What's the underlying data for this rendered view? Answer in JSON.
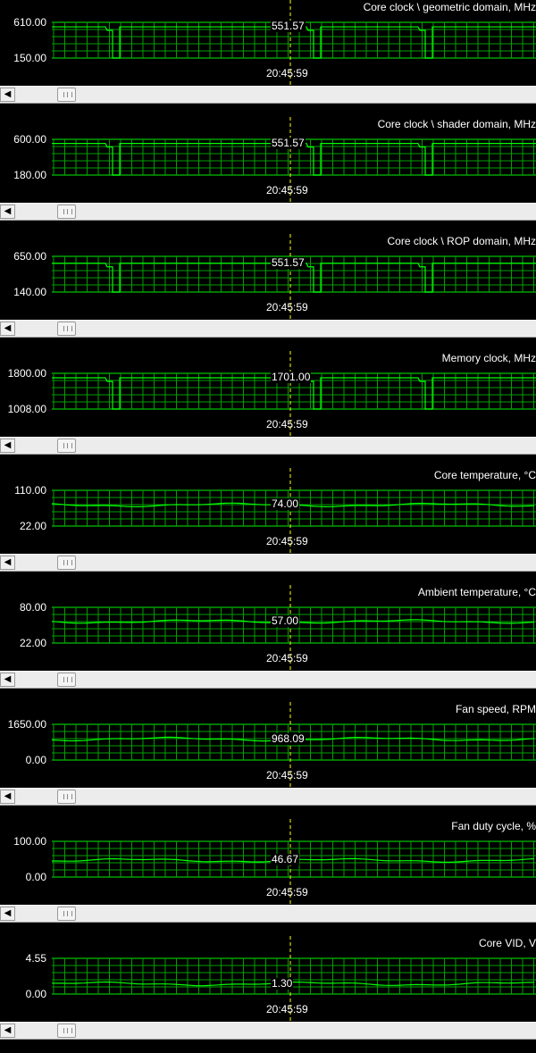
{
  "timestamp": "20:45:59",
  "colors": {
    "grid": "#00a000",
    "trace": "#00ff00",
    "cursor": "#ffff00",
    "text": "#ffffff"
  },
  "icons": {
    "scroll_left": "chevron-left-icon",
    "scroll_thumb": "scroll-thumb-grip-icon"
  },
  "panels": [
    {
      "title": "Core clock \\ geometric domain, MHz",
      "max": "610.00",
      "min": "150.00",
      "current": "551.57",
      "max_value": 610,
      "min_value": 150,
      "baseline": 551.57,
      "dip": 150,
      "dips": [
        130,
        355,
        480
      ]
    },
    {
      "title": "Core clock \\ shader domain, MHz",
      "max": "600.00",
      "min": "180.00",
      "current": "551.57",
      "max_value": 600,
      "min_value": 180,
      "baseline": 551.57,
      "dip": 180,
      "dips": [
        130,
        355,
        480
      ]
    },
    {
      "title": "Core clock \\ ROP domain, MHz",
      "max": "650.00",
      "min": "140.00",
      "current": "551.57",
      "max_value": 650,
      "min_value": 140,
      "baseline": 551.57,
      "dip": 140,
      "dips": [
        130,
        355,
        480
      ]
    },
    {
      "title": "Memory clock, MHz",
      "max": "1800.00",
      "min": "1008.00",
      "current": "1701.00",
      "max_value": 1800,
      "min_value": 1008,
      "baseline": 1701,
      "dip": 1008,
      "dips": [
        130,
        355,
        480
      ]
    },
    {
      "title": "Core temperature, °C",
      "max": "110.00",
      "min": "22.00",
      "current": "74.00",
      "max_value": 110,
      "min_value": 22,
      "baseline": 74
    },
    {
      "title": "Ambient temperature, °C",
      "max": "80.00",
      "min": "22.00",
      "current": "57.00",
      "max_value": 80,
      "min_value": 22,
      "baseline": 57
    },
    {
      "title": "Fan speed, RPM",
      "max": "1650.00",
      "min": "0.00",
      "current": "968.09",
      "max_value": 1650,
      "min_value": 0,
      "baseline": 968.09
    },
    {
      "title": "Fan duty cycle, %",
      "max": "100.00",
      "min": "0.00",
      "current": "46.67",
      "max_value": 100,
      "min_value": 0,
      "baseline": 46.67
    },
    {
      "title": "Core VID, V",
      "max": "4.55",
      "min": "0.00",
      "current": "1.30",
      "max_value": 4.55,
      "min_value": 0,
      "baseline": 1.3
    }
  ]
}
